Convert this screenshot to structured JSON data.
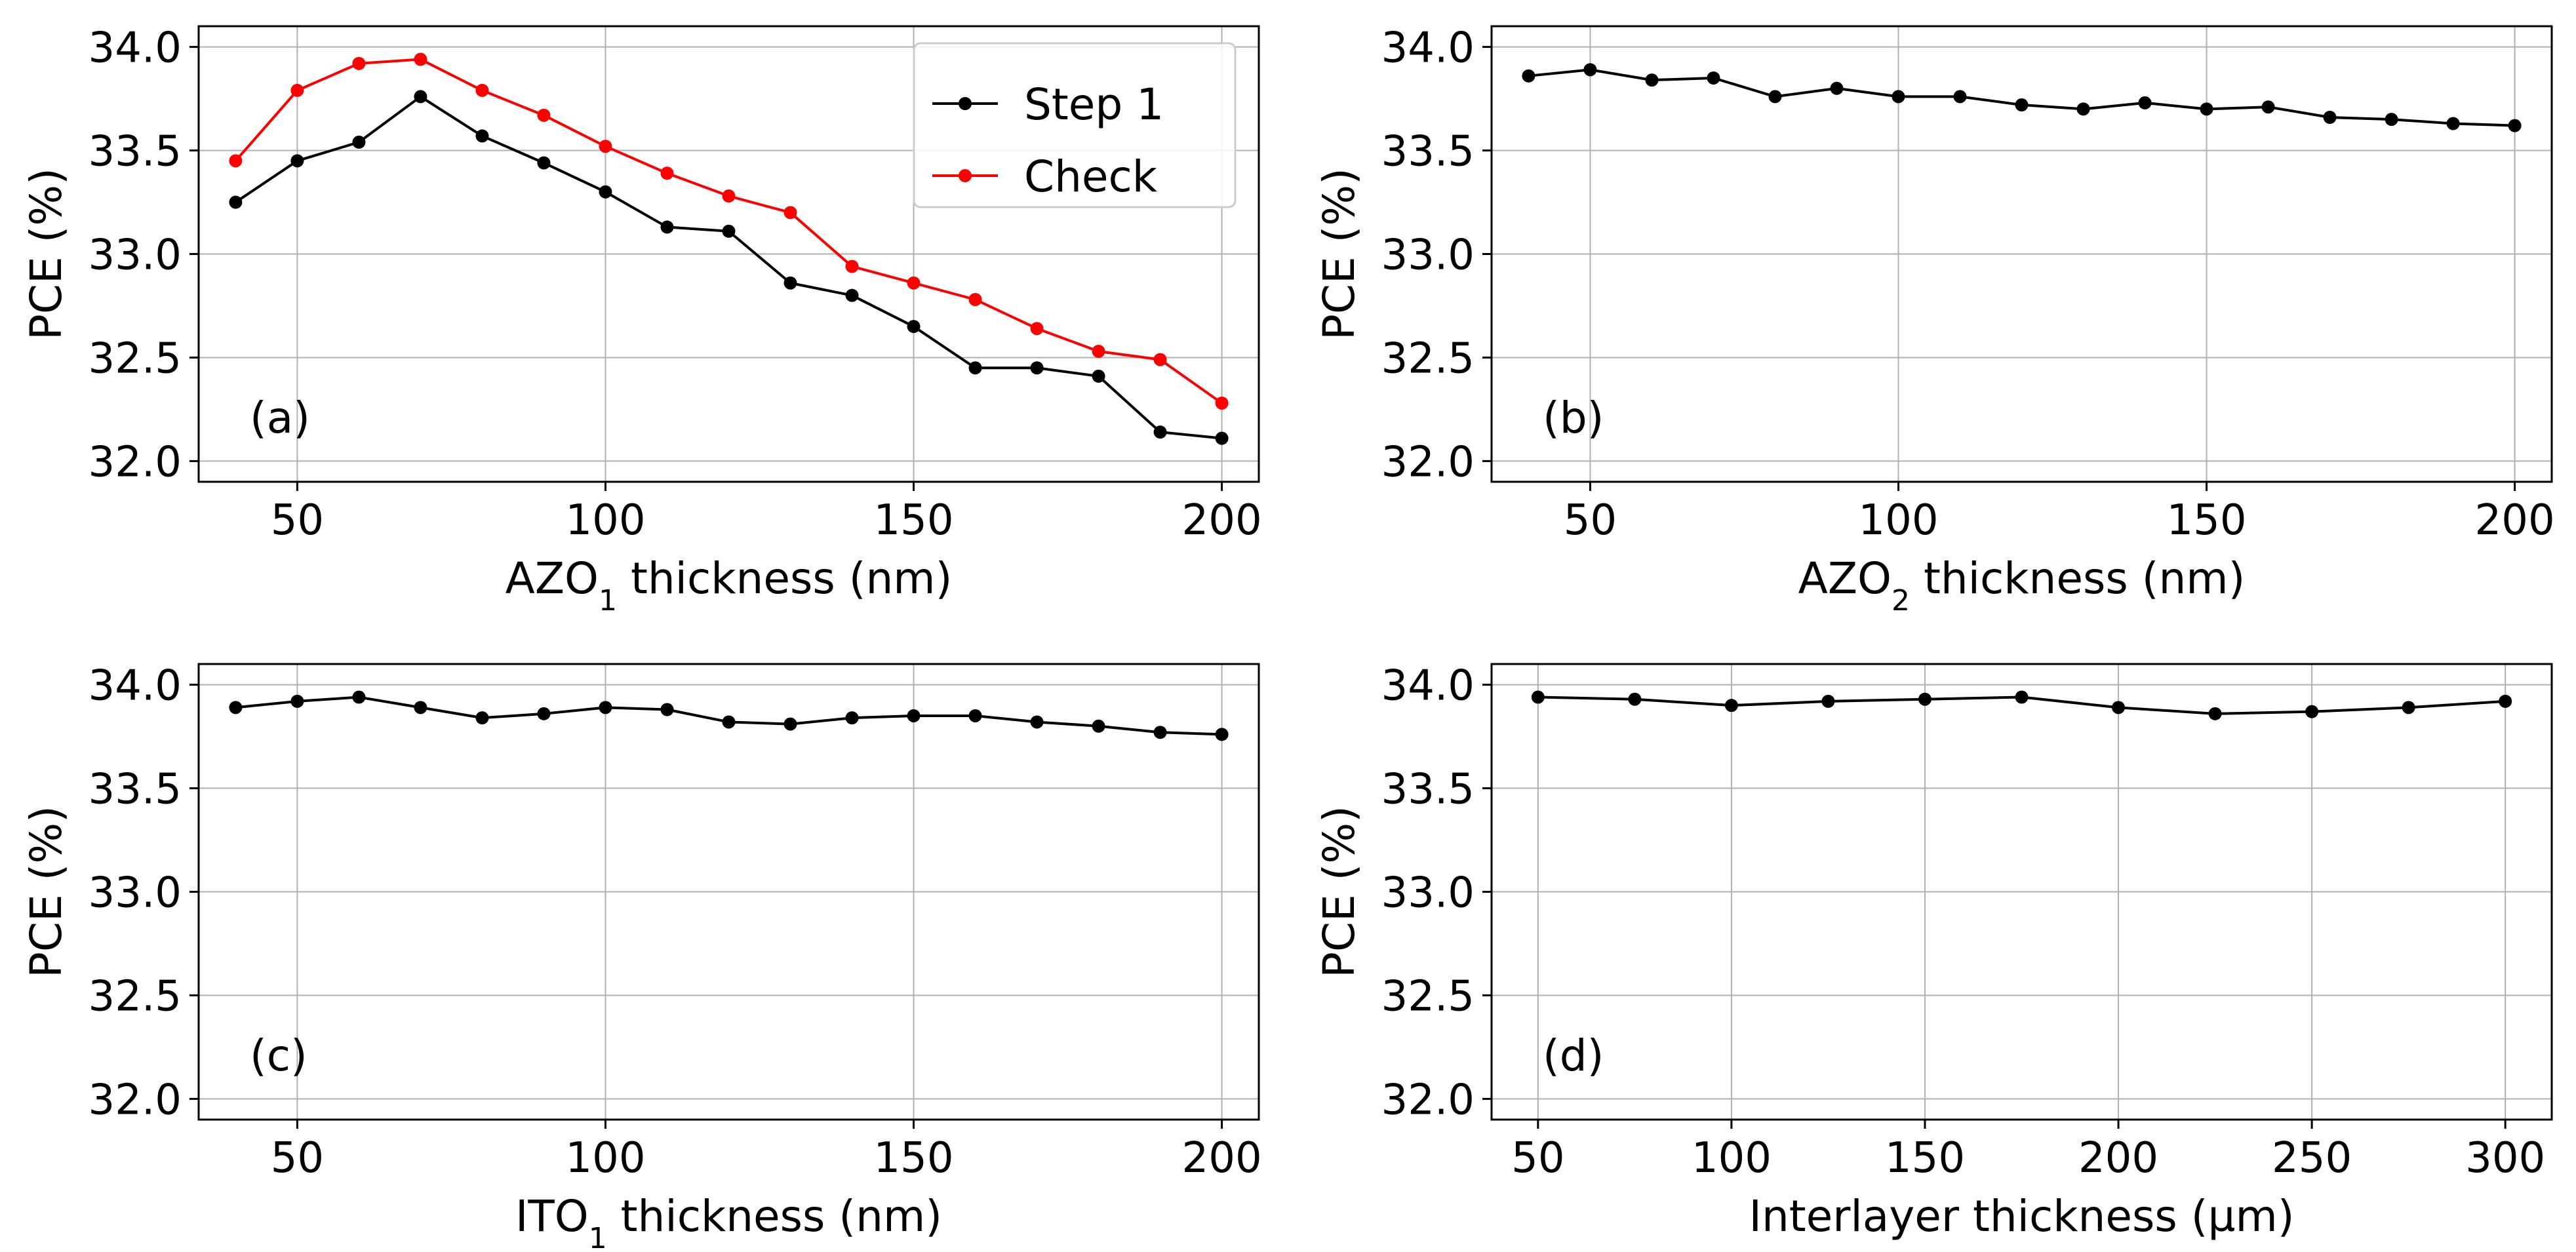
{
  "chart_data": [
    {
      "type": "line",
      "panel_label": "(a)",
      "xlabel": {
        "main": "AZO",
        "sub": "1",
        "rest": " thickness (nm)"
      },
      "ylabel": "PCE (%)",
      "x": [
        40,
        50,
        60,
        70,
        80,
        90,
        100,
        110,
        120,
        130,
        140,
        150,
        160,
        170,
        180,
        190,
        200
      ],
      "xlim": [
        34,
        206
      ],
      "ylim": [
        31.9,
        34.1
      ],
      "xticks": [
        50,
        100,
        150,
        200
      ],
      "yticks": [
        32.0,
        32.5,
        33.0,
        33.5,
        34.0
      ],
      "grid": true,
      "legend": "top-right",
      "series": [
        {
          "name": "Step 1",
          "color": "#000000",
          "values": [
            33.25,
            33.45,
            33.54,
            33.76,
            33.57,
            33.44,
            33.3,
            33.13,
            33.11,
            32.86,
            32.8,
            32.65,
            32.45,
            32.45,
            32.41,
            32.14,
            32.11
          ]
        },
        {
          "name": "Check",
          "color": "#ff0000",
          "values": [
            33.45,
            33.79,
            33.92,
            33.94,
            33.79,
            33.67,
            33.52,
            33.39,
            33.28,
            33.2,
            32.94,
            32.86,
            32.78,
            32.64,
            32.53,
            32.49,
            32.28
          ]
        }
      ]
    },
    {
      "type": "line",
      "panel_label": "(b)",
      "xlabel": {
        "main": "AZO",
        "sub": "2",
        "rest": " thickness (nm)"
      },
      "ylabel": "PCE (%)",
      "x": [
        40,
        50,
        60,
        70,
        80,
        90,
        100,
        110,
        120,
        130,
        140,
        150,
        160,
        170,
        180,
        190,
        200
      ],
      "xlim": [
        34,
        206
      ],
      "ylim": [
        31.9,
        34.1
      ],
      "xticks": [
        50,
        100,
        150,
        200
      ],
      "yticks": [
        32.0,
        32.5,
        33.0,
        33.5,
        34.0
      ],
      "grid": true,
      "series": [
        {
          "color": "#000000",
          "values": [
            33.86,
            33.89,
            33.84,
            33.85,
            33.76,
            33.8,
            33.76,
            33.76,
            33.72,
            33.7,
            33.73,
            33.7,
            33.71,
            33.66,
            33.65,
            33.63,
            33.62
          ]
        }
      ]
    },
    {
      "type": "line",
      "panel_label": "(c)",
      "xlabel": {
        "main": "ITO",
        "sub": "1",
        "rest": " thickness (nm)"
      },
      "ylabel": "PCE (%)",
      "x": [
        40,
        50,
        60,
        70,
        80,
        90,
        100,
        110,
        120,
        130,
        140,
        150,
        160,
        170,
        180,
        190,
        200
      ],
      "xlim": [
        34,
        206
      ],
      "ylim": [
        31.9,
        34.1
      ],
      "xticks": [
        50,
        100,
        150,
        200
      ],
      "yticks": [
        32.0,
        32.5,
        33.0,
        33.5,
        34.0
      ],
      "grid": true,
      "series": [
        {
          "color": "#000000",
          "values": [
            33.89,
            33.92,
            33.94,
            33.89,
            33.84,
            33.86,
            33.89,
            33.88,
            33.82,
            33.81,
            33.84,
            33.85,
            33.85,
            33.82,
            33.8,
            33.77,
            33.76
          ]
        }
      ]
    },
    {
      "type": "line",
      "panel_label": "(d)",
      "xlabel": {
        "main": "Interlayer thickness (µm)",
        "sub": "",
        "rest": ""
      },
      "ylabel": "PCE (%)",
      "x": [
        50,
        75,
        100,
        125,
        150,
        175,
        200,
        225,
        250,
        275,
        300
      ],
      "xlim": [
        38,
        312
      ],
      "ylim": [
        31.9,
        34.1
      ],
      "xticks": [
        50,
        100,
        150,
        200,
        250,
        300
      ],
      "yticks": [
        32.0,
        32.5,
        33.0,
        33.5,
        34.0
      ],
      "grid": true,
      "series": [
        {
          "color": "#000000",
          "values": [
            33.94,
            33.93,
            33.9,
            33.92,
            33.93,
            33.94,
            33.89,
            33.86,
            33.87,
            33.89,
            33.92
          ]
        }
      ]
    }
  ]
}
